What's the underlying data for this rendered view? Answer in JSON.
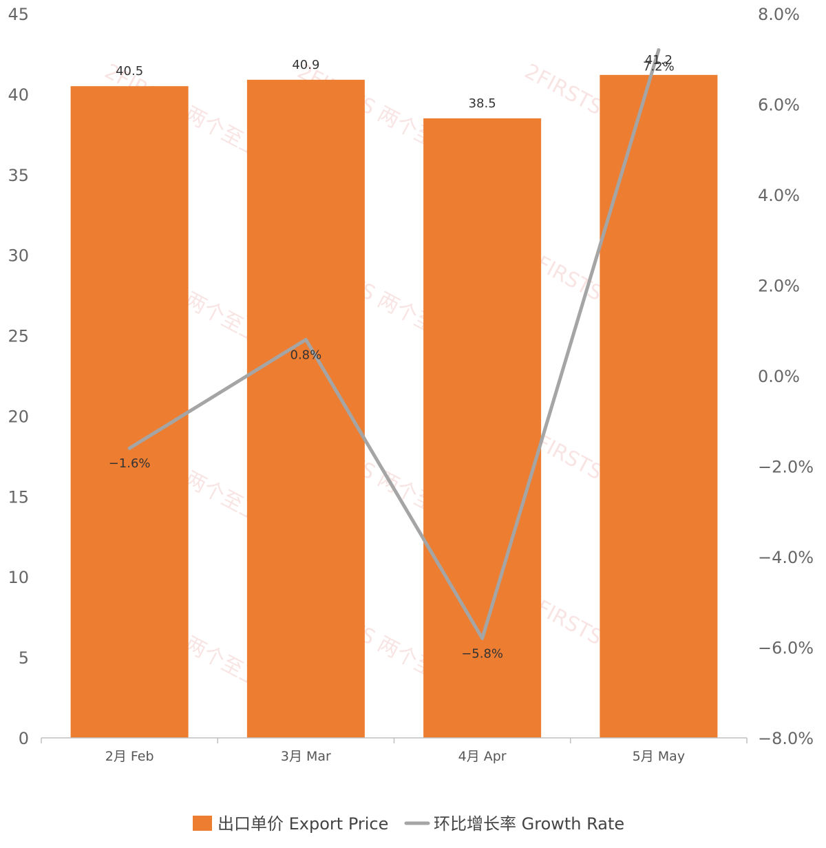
{
  "chart_data": {
    "type": "bar",
    "categories": [
      "2月 Feb",
      "3月 Mar",
      "4月 Apr",
      "5月 May"
    ],
    "series": [
      {
        "name": "出口单价 Export Price",
        "type": "bar",
        "axis": "left",
        "values": [
          40.5,
          40.9,
          38.5,
          41.2
        ],
        "labels": [
          "40.5",
          "40.9",
          "38.5",
          "41.2"
        ],
        "color": "#ED7D31"
      },
      {
        "name": "环比增长率 Growth Rate",
        "type": "line",
        "axis": "right",
        "values": [
          -1.6,
          0.8,
          -5.8,
          7.2
        ],
        "labels": [
          "−1.6%",
          "0.8%",
          "−5.8%",
          "7.2%"
        ],
        "color": "#A5A5A5"
      }
    ],
    "y_left": {
      "min": 0,
      "max": 45,
      "ticks": [
        "0",
        "5",
        "10",
        "15",
        "20",
        "25",
        "30",
        "35",
        "40",
        "45"
      ]
    },
    "y_right": {
      "min": -8,
      "max": 8,
      "ticks": [
        "−8.0%",
        "−6.0%",
        "−4.0%",
        "−2.0%",
        "0.0%",
        "2.0%",
        "4.0%",
        "6.0%",
        "8.0%"
      ]
    },
    "grid": false,
    "legend_position": "bottom",
    "watermark": "2FIRSTS 两个至上"
  }
}
